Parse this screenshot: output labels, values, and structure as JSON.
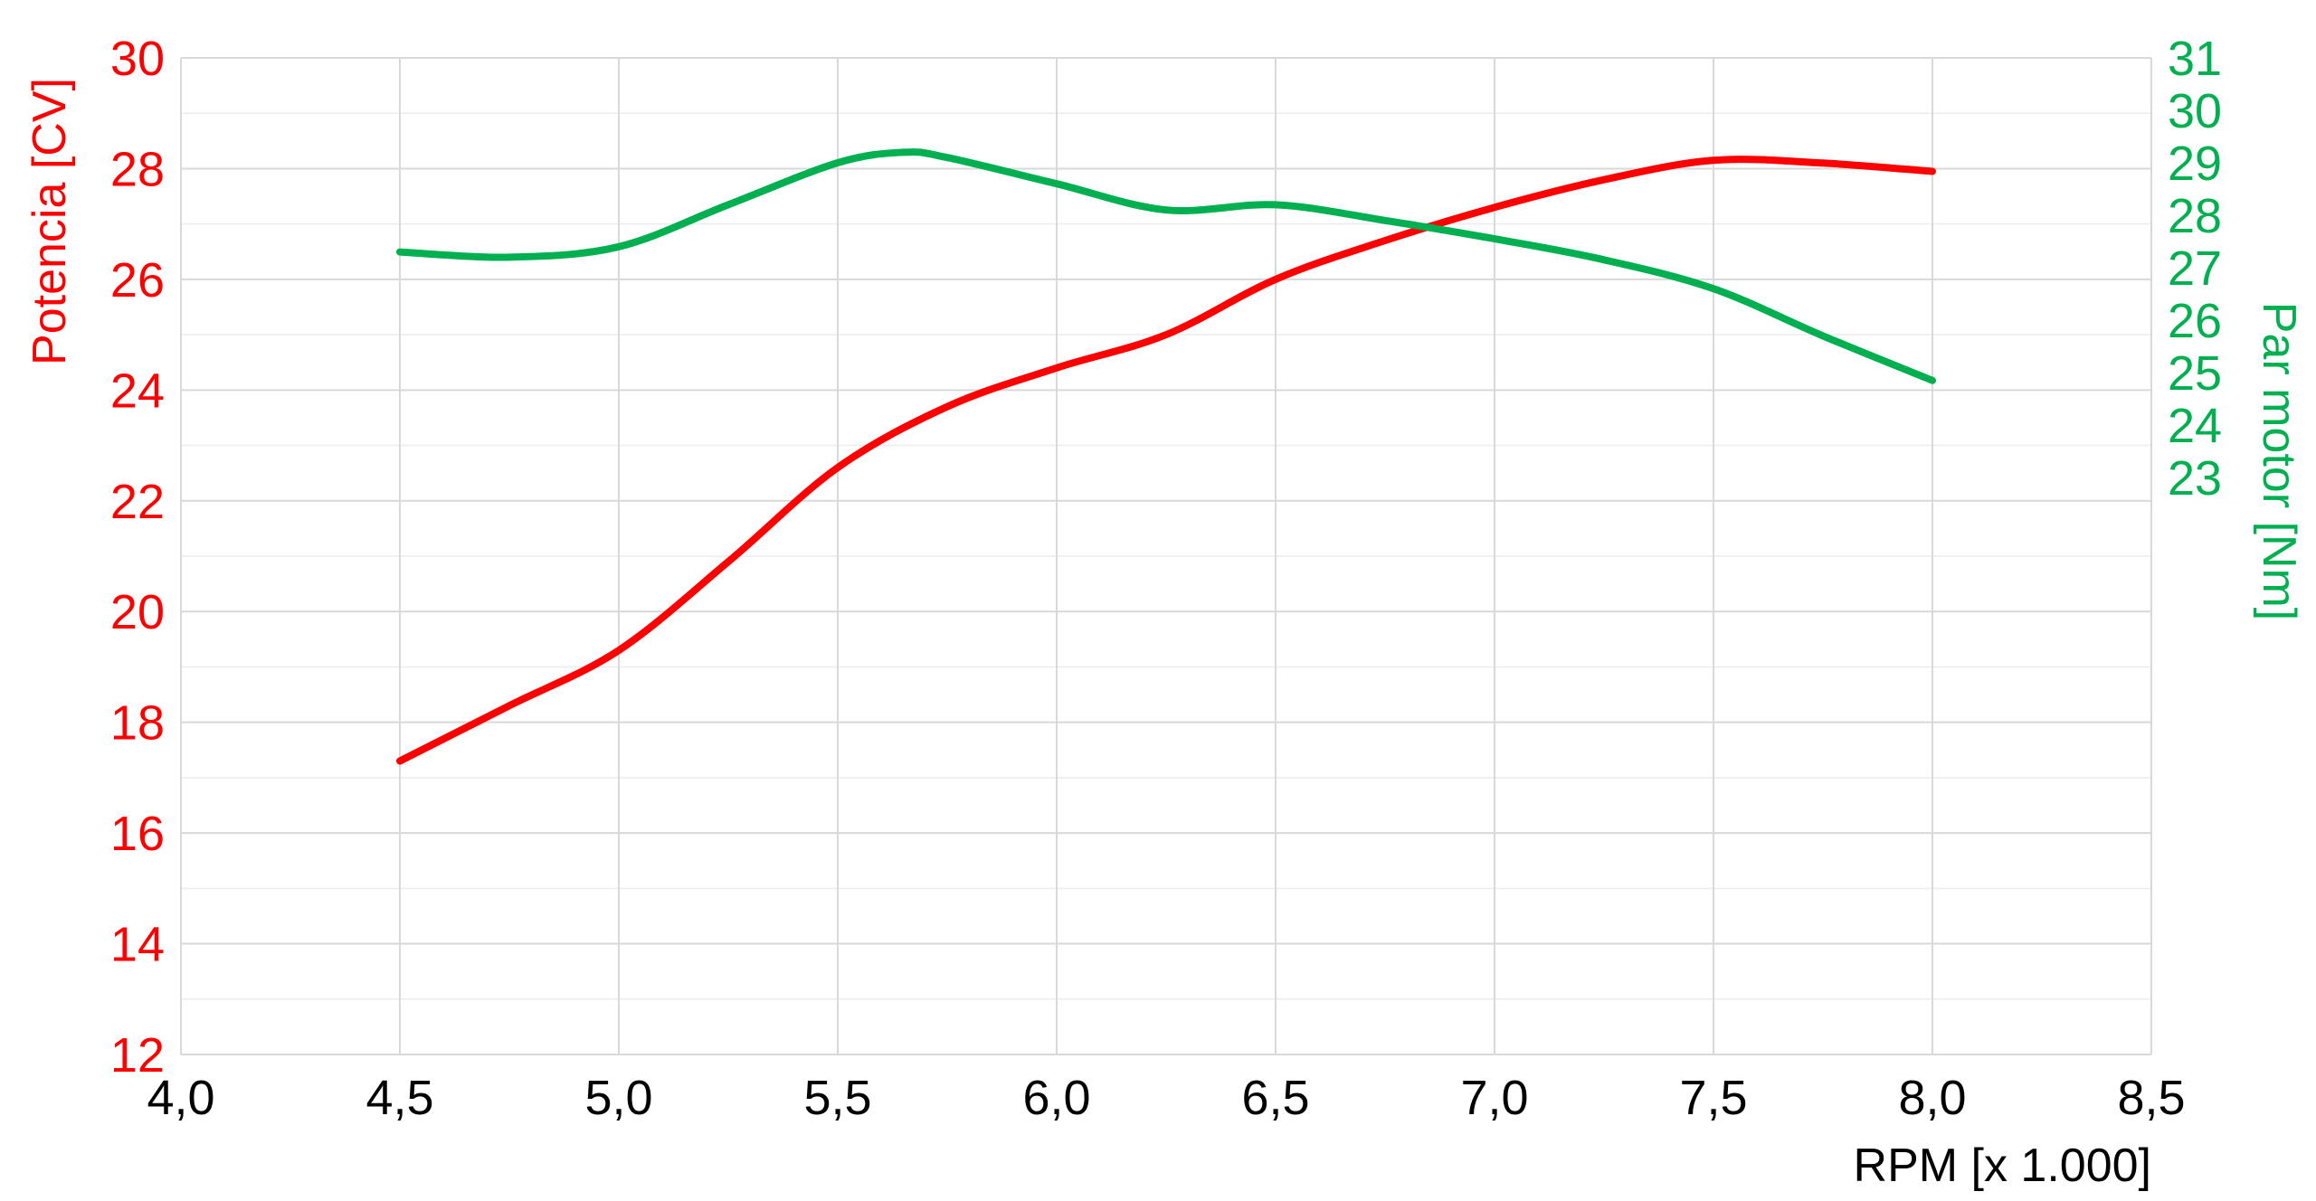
{
  "chart_data": {
    "type": "line",
    "xlabel": "RPM [x 1.000]",
    "y1label": "Potencia [CV]",
    "y2label": "Par motor [Nm]",
    "xlim": [
      4.0,
      8.5
    ],
    "y1lim": [
      12,
      30
    ],
    "y2lim": [
      12,
      31
    ],
    "x_ticks": [
      "4,0",
      "4,5",
      "5,0",
      "5,5",
      "6,0",
      "6,5",
      "7,0",
      "7,5",
      "8,0",
      "8,5"
    ],
    "y1_ticks": [
      "12",
      "14",
      "16",
      "18",
      "20",
      "22",
      "24",
      "26",
      "28",
      "30"
    ],
    "y2_ticks": [
      "23",
      "24",
      "25",
      "26",
      "27",
      "28",
      "29",
      "30",
      "31"
    ],
    "grid": true,
    "series": [
      {
        "name": "Potencia [CV]",
        "axis": "left",
        "color": "#ff0000",
        "x": [
          4.5,
          4.75,
          5.0,
          5.25,
          5.5,
          5.75,
          6.0,
          6.25,
          6.5,
          6.75,
          7.0,
          7.25,
          7.5,
          7.75,
          8.0
        ],
        "values": [
          17.3,
          18.3,
          19.3,
          20.9,
          22.6,
          23.7,
          24.4,
          25.0,
          26.0,
          26.7,
          27.3,
          27.8,
          28.15,
          28.1,
          27.95
        ]
      },
      {
        "name": "Par motor [Nm]",
        "axis": "right",
        "color": "#00b050",
        "x": [
          4.5,
          4.75,
          5.0,
          5.25,
          5.5,
          5.65,
          5.75,
          6.0,
          6.25,
          6.5,
          6.75,
          7.0,
          7.25,
          7.5,
          7.75,
          8.0
        ],
        "values": [
          27.3,
          27.2,
          27.4,
          28.2,
          29.0,
          29.2,
          29.1,
          28.6,
          28.1,
          28.2,
          27.9,
          27.55,
          27.15,
          26.6,
          25.7,
          24.85
        ]
      }
    ]
  }
}
